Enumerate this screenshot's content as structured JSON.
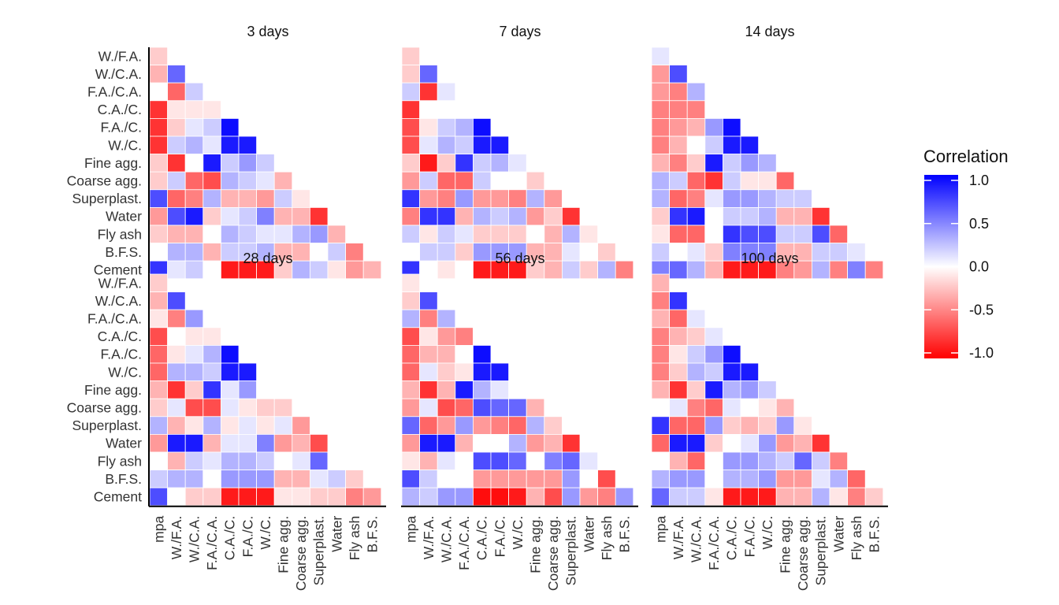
{
  "chart_data": {
    "type": "heatmap",
    "variables": [
      "mpa",
      "W./F.A.",
      "W./C.A.",
      "F.A./C.A.",
      "C.A./C.",
      "F.A./C.",
      "W./C.",
      "Fine agg.",
      "Coarse agg.",
      "Superplast.",
      "Water",
      "Fly ash",
      "B.F.S.",
      "Cement"
    ],
    "x_tick_labels": [
      "mpa",
      "W./F.A.",
      "W./C.A.",
      "F.A./C.A.",
      "C.A./C.",
      "F.A./C.",
      "W./C.",
      "Fine agg.",
      "Coarse agg.",
      "Superplast.",
      "Water",
      "Fly ash",
      "B.F.S."
    ],
    "y_tick_labels": [
      "W./F.A.",
      "W./C.A.",
      "F.A./C.A.",
      "C.A./C.",
      "F.A./C.",
      "W./C.",
      "Fine agg.",
      "Coarse agg.",
      "Superplast.",
      "Water",
      "Fly ash",
      "B.F.S.",
      "Cement"
    ],
    "layout": "lower-triangle",
    "color_scale": {
      "low": "#ff0000",
      "mid": "#ffffff",
      "high": "#0000ff",
      "limits": [
        -1,
        1
      ]
    },
    "legend": {
      "title": "Correlation",
      "ticks": [
        1.0,
        0.5,
        0.0,
        -0.5,
        -1.0
      ],
      "tick_labels": [
        "1.0",
        "0.5",
        "0.0",
        "-0.5",
        "-1.0"
      ],
      "position": "right"
    },
    "panels": [
      {
        "title": "3 days",
        "rows": [
          [
            -0.2
          ],
          [
            -0.3,
            0.6
          ],
          [
            0.0,
            -0.6,
            0.2
          ],
          [
            -0.8,
            -0.1,
            -0.1,
            -0.1
          ],
          [
            -0.8,
            -0.2,
            0.1,
            0.2,
            0.95
          ],
          [
            -0.8,
            0.2,
            0.3,
            0.1,
            0.9,
            0.9
          ],
          [
            -0.2,
            -0.8,
            0.0,
            0.9,
            0.2,
            0.4,
            0.2
          ],
          [
            -0.2,
            0.2,
            -0.6,
            -0.7,
            0.3,
            0.2,
            0.1,
            -0.3
          ],
          [
            0.7,
            -0.6,
            -0.5,
            0.3,
            -0.3,
            -0.3,
            -0.4,
            0.2,
            -0.1
          ],
          [
            -0.4,
            0.7,
            0.9,
            -0.2,
            0.1,
            0.2,
            0.5,
            -0.3,
            -0.3,
            -0.8
          ],
          [
            -0.2,
            -0.3,
            -0.3,
            0.0,
            0.3,
            0.2,
            0.1,
            0.1,
            0.3,
            0.4,
            -0.3
          ],
          [
            0.0,
            0.3,
            0.3,
            -0.3,
            0.2,
            0.2,
            0.3,
            -0.3,
            -0.3,
            0.0,
            0.2,
            -0.5
          ],
          [
            0.8,
            0.1,
            0.2,
            0.0,
            -0.9,
            -0.9,
            -0.9,
            -0.2,
            0.3,
            0.2,
            -0.1,
            -0.4,
            -0.3
          ]
        ]
      },
      {
        "title": "7 days",
        "rows": [
          [
            -0.2
          ],
          [
            -0.2,
            0.6
          ],
          [
            0.2,
            -0.8,
            0.1
          ],
          [
            -0.8,
            0.0,
            0.0,
            0.0
          ],
          [
            -0.7,
            -0.1,
            0.2,
            0.3,
            0.95
          ],
          [
            -0.7,
            0.1,
            0.3,
            0.2,
            0.9,
            0.9
          ],
          [
            -0.2,
            -0.9,
            -0.2,
            0.8,
            0.2,
            0.3,
            0.1
          ],
          [
            -0.4,
            0.2,
            -0.6,
            -0.6,
            0.2,
            0.0,
            0.0,
            -0.2
          ],
          [
            0.8,
            -0.4,
            -0.5,
            0.4,
            -0.4,
            -0.4,
            -0.5,
            0.3,
            -0.4
          ],
          [
            -0.5,
            0.8,
            0.8,
            -0.3,
            0.3,
            0.2,
            0.3,
            -0.4,
            -0.2,
            -0.8
          ],
          [
            0.2,
            -0.1,
            0.2,
            0.1,
            -0.2,
            -0.2,
            -0.2,
            0.0,
            -0.3,
            0.3,
            -0.1
          ],
          [
            0.0,
            0.2,
            0.2,
            -0.2,
            0.4,
            0.4,
            0.4,
            -0.3,
            -0.3,
            0.1,
            0.0,
            -0.2
          ],
          [
            0.8,
            0.0,
            -0.1,
            0.0,
            -0.9,
            -0.9,
            -0.9,
            -0.2,
            -0.3,
            0.2,
            -0.2,
            0.3,
            -0.5
          ]
        ]
      },
      {
        "title": "14 days",
        "rows": [
          [
            0.1
          ],
          [
            -0.4,
            0.7
          ],
          [
            -0.4,
            -0.5,
            0.3
          ],
          [
            -0.5,
            -0.5,
            -0.5,
            0.0
          ],
          [
            -0.5,
            -0.4,
            -0.3,
            0.4,
            0.95
          ],
          [
            -0.5,
            -0.3,
            0.0,
            0.2,
            0.9,
            0.9
          ],
          [
            -0.3,
            -0.5,
            -0.2,
            0.9,
            0.2,
            0.4,
            0.3
          ],
          [
            0.3,
            0.2,
            -0.6,
            -0.8,
            0.2,
            -0.1,
            -0.1,
            -0.6
          ],
          [
            0.3,
            -0.6,
            -0.5,
            0.1,
            0.4,
            0.4,
            0.3,
            0.2,
            0.2
          ],
          [
            -0.2,
            0.8,
            0.9,
            0.0,
            0.2,
            0.2,
            0.3,
            -0.3,
            -0.3,
            -0.8
          ],
          [
            -0.1,
            -0.6,
            -0.6,
            0.0,
            0.8,
            0.7,
            0.7,
            0.2,
            0.2,
            0.7,
            -0.6
          ],
          [
            0.2,
            0.0,
            0.1,
            -0.2,
            0.5,
            0.5,
            0.5,
            -0.3,
            -0.3,
            0.2,
            0.2,
            0.1
          ],
          [
            0.5,
            0.6,
            0.3,
            -0.3,
            -0.9,
            -0.9,
            -0.9,
            -0.5,
            -0.4,
            0.3,
            -0.5,
            0.5,
            -0.5
          ]
        ]
      },
      {
        "title": "28 days",
        "rows": [
          [
            -0.2
          ],
          [
            -0.3,
            0.7
          ],
          [
            -0.1,
            -0.5,
            0.4
          ],
          [
            -0.7,
            0.0,
            -0.1,
            -0.1
          ],
          [
            -0.6,
            -0.1,
            0.1,
            0.3,
            0.95
          ],
          [
            -0.6,
            0.3,
            0.3,
            0.2,
            0.9,
            0.9
          ],
          [
            -0.3,
            -0.8,
            -0.2,
            0.8,
            0.1,
            0.4,
            0.0
          ],
          [
            -0.2,
            0.1,
            -0.7,
            -0.7,
            0.1,
            -0.1,
            -0.2,
            -0.2
          ],
          [
            0.3,
            -0.3,
            -0.1,
            0.3,
            -0.1,
            0.1,
            -0.1,
            0.1,
            -0.4
          ],
          [
            -0.4,
            0.9,
            0.9,
            -0.3,
            0.1,
            0.1,
            0.5,
            -0.4,
            -0.3,
            -0.7
          ],
          [
            0.0,
            -0.3,
            0.2,
            0.1,
            0.3,
            0.3,
            0.2,
            0.0,
            0.1,
            0.6,
            0.0
          ],
          [
            0.2,
            0.3,
            0.3,
            0.0,
            0.4,
            0.4,
            0.4,
            -0.3,
            -0.3,
            0.1,
            0.2,
            -0.2
          ],
          [
            0.7,
            0.0,
            -0.2,
            -0.2,
            -0.9,
            -0.9,
            -0.9,
            -0.1,
            -0.1,
            -0.2,
            -0.2,
            -0.5,
            -0.4
          ]
        ]
      },
      {
        "title": "56 days",
        "rows": [
          [
            -0.1
          ],
          [
            -0.2,
            0.7
          ],
          [
            0.3,
            -0.5,
            0.3
          ],
          [
            -0.7,
            -0.1,
            -0.4,
            -0.5
          ],
          [
            -0.6,
            -0.3,
            -0.3,
            0.0,
            0.95
          ],
          [
            -0.6,
            0.1,
            -0.2,
            -0.1,
            0.9,
            0.9
          ],
          [
            -0.3,
            -0.8,
            -0.3,
            0.9,
            0.3,
            0.1,
            0.0
          ],
          [
            -0.4,
            0.1,
            -0.7,
            -0.6,
            0.7,
            0.6,
            0.6,
            -0.3
          ],
          [
            0.6,
            -0.6,
            -0.4,
            0.4,
            -0.4,
            -0.5,
            -0.6,
            0.3,
            -0.2
          ],
          [
            -0.4,
            0.9,
            0.9,
            -0.3,
            0.0,
            0.0,
            0.3,
            -0.4,
            -0.3,
            -0.8
          ],
          [
            -0.1,
            -0.3,
            0.1,
            0.0,
            0.7,
            0.7,
            0.6,
            0.0,
            0.5,
            0.6,
            0.1
          ],
          [
            0.7,
            0.2,
            0.0,
            0.0,
            -0.4,
            -0.4,
            -0.4,
            -0.4,
            -0.4,
            0.4,
            0.0,
            -0.7
          ],
          [
            0.3,
            0.2,
            0.4,
            0.4,
            -0.95,
            -0.95,
            -0.9,
            -0.3,
            -0.7,
            0.4,
            -0.4,
            -0.5,
            0.4
          ]
        ]
      },
      {
        "title": "100 days",
        "rows": [
          [
            -0.3
          ],
          [
            -0.5,
            0.8
          ],
          [
            -0.3,
            -0.6,
            0.1
          ],
          [
            -0.5,
            -0.3,
            -0.2,
            0.1
          ],
          [
            -0.5,
            -0.1,
            0.2,
            0.4,
            0.95
          ],
          [
            -0.5,
            -0.2,
            0.3,
            0.2,
            0.9,
            0.9
          ],
          [
            -0.3,
            -0.8,
            -0.2,
            0.9,
            0.3,
            0.4,
            0.2
          ],
          [
            0.0,
            0.1,
            -0.5,
            -0.6,
            0.1,
            0.0,
            -0.1,
            -0.3
          ],
          [
            0.8,
            -0.6,
            -0.6,
            0.4,
            -0.2,
            -0.3,
            -0.2,
            0.4,
            -0.1
          ],
          [
            -0.6,
            0.9,
            0.9,
            -0.2,
            0.0,
            0.1,
            0.4,
            -0.4,
            -0.3,
            -0.8
          ],
          [
            0.0,
            -0.3,
            -0.6,
            0.0,
            0.4,
            0.4,
            0.3,
            0.2,
            0.6,
            0.2,
            -0.5
          ],
          [
            0.3,
            0.4,
            0.4,
            0.0,
            0.3,
            0.3,
            0.4,
            -0.4,
            -0.4,
            0.1,
            0.3,
            -0.6
          ],
          [
            0.6,
            0.2,
            0.2,
            -0.1,
            -0.9,
            -0.9,
            -0.9,
            -0.3,
            -0.3,
            0.3,
            -0.1,
            -0.5,
            -0.2
          ]
        ]
      }
    ]
  }
}
